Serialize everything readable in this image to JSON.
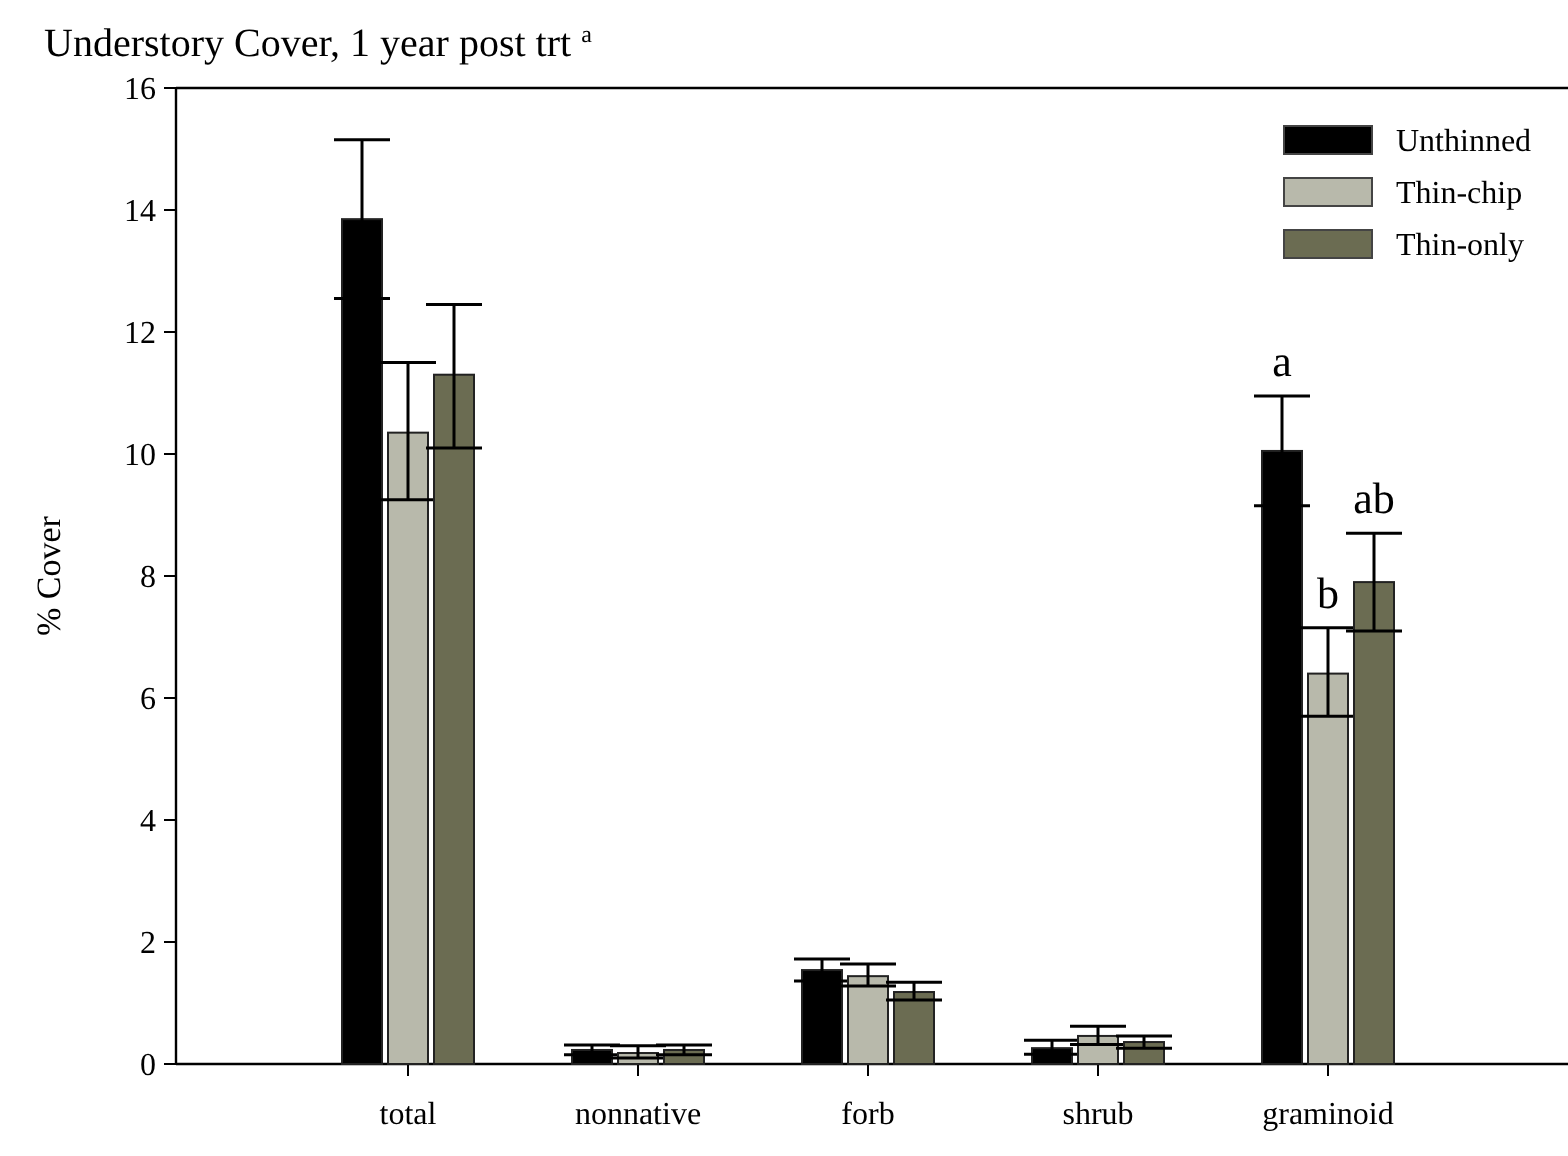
{
  "chart_data": {
    "type": "bar",
    "title": "Understory Cover, 1 year post trt $^{a}$",
    "ylabel": "% Cover",
    "categories": [
      "total",
      "nonnative",
      "forb",
      "shrub",
      "graminoid"
    ],
    "series": [
      {
        "name": "Unthinned",
        "color": "#000000",
        "values": [
          13.85,
          0.23,
          1.54,
          0.26,
          10.05
        ],
        "errors": [
          1.3,
          [
            0.15,
            0.31
          ],
          0.18,
          [
            0.16,
            0.39
          ],
          0.9
        ]
      },
      {
        "name": "Thin-chip",
        "color": "#b8b9ab",
        "values": [
          10.35,
          0.18,
          1.44,
          0.46,
          6.4
        ],
        "errors": [
          [
            9.25,
            11.5
          ],
          [
            0.1,
            0.3
          ],
          [
            1.28,
            1.64
          ],
          [
            0.32,
            0.62
          ],
          [
            5.7,
            7.15
          ]
        ]
      },
      {
        "name": "Thin-only",
        "color": "#6b6c52",
        "values": [
          11.3,
          0.23,
          1.18,
          0.36,
          7.9
        ],
        "errors": [
          [
            10.1,
            12.45
          ],
          [
            0.15,
            0.31
          ],
          [
            1.05,
            1.34
          ],
          [
            0.26,
            0.46
          ],
          [
            7.1,
            8.7
          ]
        ]
      }
    ],
    "ylim": [
      0,
      16
    ],
    "yticks": [
      0,
      2,
      4,
      6,
      8,
      10,
      12,
      14,
      16
    ],
    "grid": false,
    "legend": "top right",
    "annotations": [
      "a",
      "b",
      "ab"
    ]
  }
}
